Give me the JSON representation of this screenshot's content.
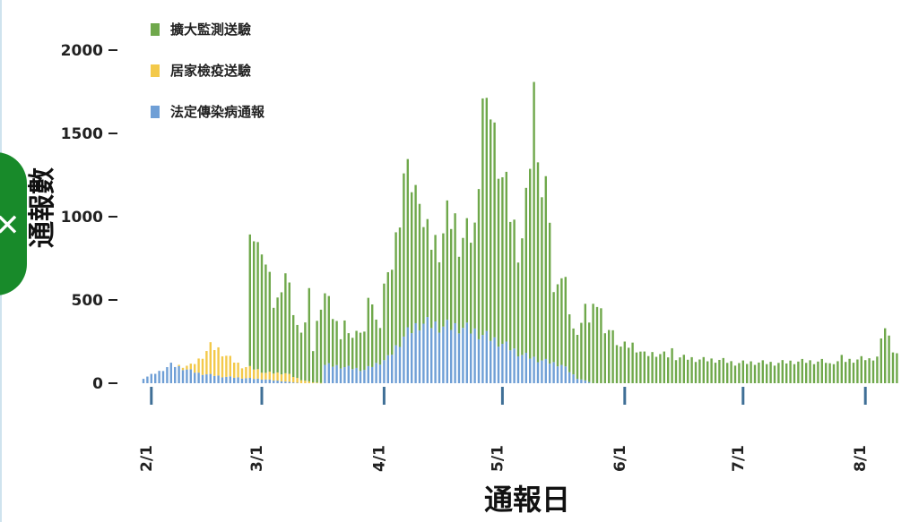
{
  "chart_data": {
    "type": "bar",
    "stacked": true,
    "title": "",
    "ylabel": "通報數",
    "xlabel": "通報日",
    "ylim": [
      0,
      2200
    ],
    "y_ticks": [
      0,
      500,
      1000,
      1500,
      2000
    ],
    "y_tick_labels": [
      "0",
      "500",
      "1000",
      "1500",
      "2000"
    ],
    "x_ticks": [
      {
        "label": "2/1",
        "day": 17
      },
      {
        "label": "3/1",
        "day": 45
      },
      {
        "label": "4/1",
        "day": 76
      },
      {
        "label": "5/1",
        "day": 106
      },
      {
        "label": "6/1",
        "day": 137
      },
      {
        "label": "7/1",
        "day": 167
      },
      {
        "label": "8/1",
        "day": 198
      }
    ],
    "n_days": 192,
    "first_date": "1/16",
    "grid": false,
    "legend_position": "top-left",
    "series": [
      {
        "name": "法定傳染病通報",
        "color": "#6f9fd6",
        "anchors": [
          [
            0,
            30
          ],
          [
            4,
            70
          ],
          [
            7,
            110
          ],
          [
            10,
            90
          ],
          [
            14,
            60
          ],
          [
            17,
            50
          ],
          [
            20,
            40
          ],
          [
            26,
            30
          ],
          [
            30,
            25
          ],
          [
            36,
            10
          ],
          [
            40,
            0
          ],
          [
            45,
            0
          ],
          [
            46,
            110
          ],
          [
            50,
            100
          ],
          [
            56,
            80
          ],
          [
            62,
            150
          ],
          [
            66,
            280
          ],
          [
            70,
            360
          ],
          [
            74,
            350
          ],
          [
            76,
            340
          ],
          [
            80,
            340
          ],
          [
            84,
            310
          ],
          [
            90,
            250
          ],
          [
            96,
            170
          ],
          [
            102,
            130
          ],
          [
            106,
            110
          ],
          [
            110,
            30
          ],
          [
            114,
            0
          ],
          [
            191,
            0
          ]
        ]
      },
      {
        "name": "居家檢疫送驗",
        "color": "#f3c94a",
        "anchors": [
          [
            0,
            0
          ],
          [
            8,
            0
          ],
          [
            12,
            30
          ],
          [
            14,
            80
          ],
          [
            17,
            170
          ],
          [
            19,
            160
          ],
          [
            22,
            110
          ],
          [
            25,
            70
          ],
          [
            28,
            60
          ],
          [
            31,
            40
          ],
          [
            36,
            50
          ],
          [
            40,
            20
          ],
          [
            43,
            5
          ],
          [
            46,
            0
          ],
          [
            191,
            0
          ]
        ]
      },
      {
        "name": "擴大監測送驗",
        "color": "#6fa84b",
        "anchors": [
          [
            0,
            0
          ],
          [
            26,
            0
          ],
          [
            27,
            780
          ],
          [
            29,
            720
          ],
          [
            31,
            650
          ],
          [
            33,
            420
          ],
          [
            35,
            560
          ],
          [
            37,
            490
          ],
          [
            39,
            300
          ],
          [
            41,
            350
          ],
          [
            43,
            200
          ],
          [
            45,
            500
          ],
          [
            47,
            360
          ],
          [
            49,
            250
          ],
          [
            51,
            150
          ],
          [
            53,
            200
          ],
          [
            56,
            230
          ],
          [
            58,
            400
          ],
          [
            60,
            250
          ],
          [
            64,
            640
          ],
          [
            66,
            990
          ],
          [
            67,
            1000
          ],
          [
            69,
            800
          ],
          [
            71,
            550
          ],
          [
            73,
            500
          ],
          [
            75,
            480
          ],
          [
            77,
            640
          ],
          [
            79,
            650
          ],
          [
            81,
            540
          ],
          [
            84,
            600
          ],
          [
            86,
            1450
          ],
          [
            87,
            1420
          ],
          [
            89,
            1290
          ],
          [
            91,
            1000
          ],
          [
            93,
            820
          ],
          [
            95,
            640
          ],
          [
            97,
            760
          ],
          [
            99,
            1000
          ],
          [
            101,
            1060
          ],
          [
            103,
            900
          ],
          [
            105,
            560
          ],
          [
            107,
            480
          ],
          [
            109,
            260
          ],
          [
            111,
            340
          ],
          [
            113,
            380
          ],
          [
            115,
            520
          ],
          [
            117,
            380
          ],
          [
            119,
            300
          ],
          [
            121,
            220
          ],
          [
            124,
            230
          ],
          [
            127,
            170
          ],
          [
            130,
            180
          ],
          [
            134,
            160
          ],
          [
            138,
            150
          ],
          [
            142,
            140
          ],
          [
            146,
            140
          ],
          [
            150,
            120
          ],
          [
            155,
            125
          ],
          [
            160,
            120
          ],
          [
            165,
            130
          ],
          [
            170,
            130
          ],
          [
            175,
            130
          ],
          [
            180,
            140
          ],
          [
            184,
            150
          ],
          [
            186,
            160
          ],
          [
            188,
            320
          ],
          [
            189,
            270
          ],
          [
            190,
            210
          ],
          [
            191,
            170
          ]
        ],
        "spikes": [
          [
            27,
            790
          ],
          [
            28,
            770
          ],
          [
            30,
            710
          ],
          [
            34,
            450
          ],
          [
            36,
            600
          ],
          [
            42,
            560
          ],
          [
            51,
            280
          ],
          [
            55,
            230
          ],
          [
            57,
            410
          ],
          [
            59,
            260
          ],
          [
            61,
            460
          ],
          [
            66,
            980
          ],
          [
            67,
            1010
          ],
          [
            69,
            830
          ],
          [
            70,
            760
          ],
          [
            71,
            580
          ],
          [
            79,
            660
          ],
          [
            80,
            460
          ],
          [
            86,
            1420
          ],
          [
            87,
            1400
          ],
          [
            88,
            1330
          ],
          [
            89,
            1290
          ],
          [
            97,
            990
          ],
          [
            98,
            1140
          ],
          [
            99,
            1650
          ],
          [
            100,
            1200
          ],
          [
            101,
            980
          ],
          [
            104,
            420
          ],
          [
            112,
            460
          ],
          [
            117,
            300
          ],
          [
            134,
            210
          ],
          [
            174,
            120
          ],
          [
            177,
            170
          ],
          [
            184,
            150
          ],
          [
            188,
            330
          ],
          [
            191,
            180
          ]
        ]
      }
    ]
  }
}
